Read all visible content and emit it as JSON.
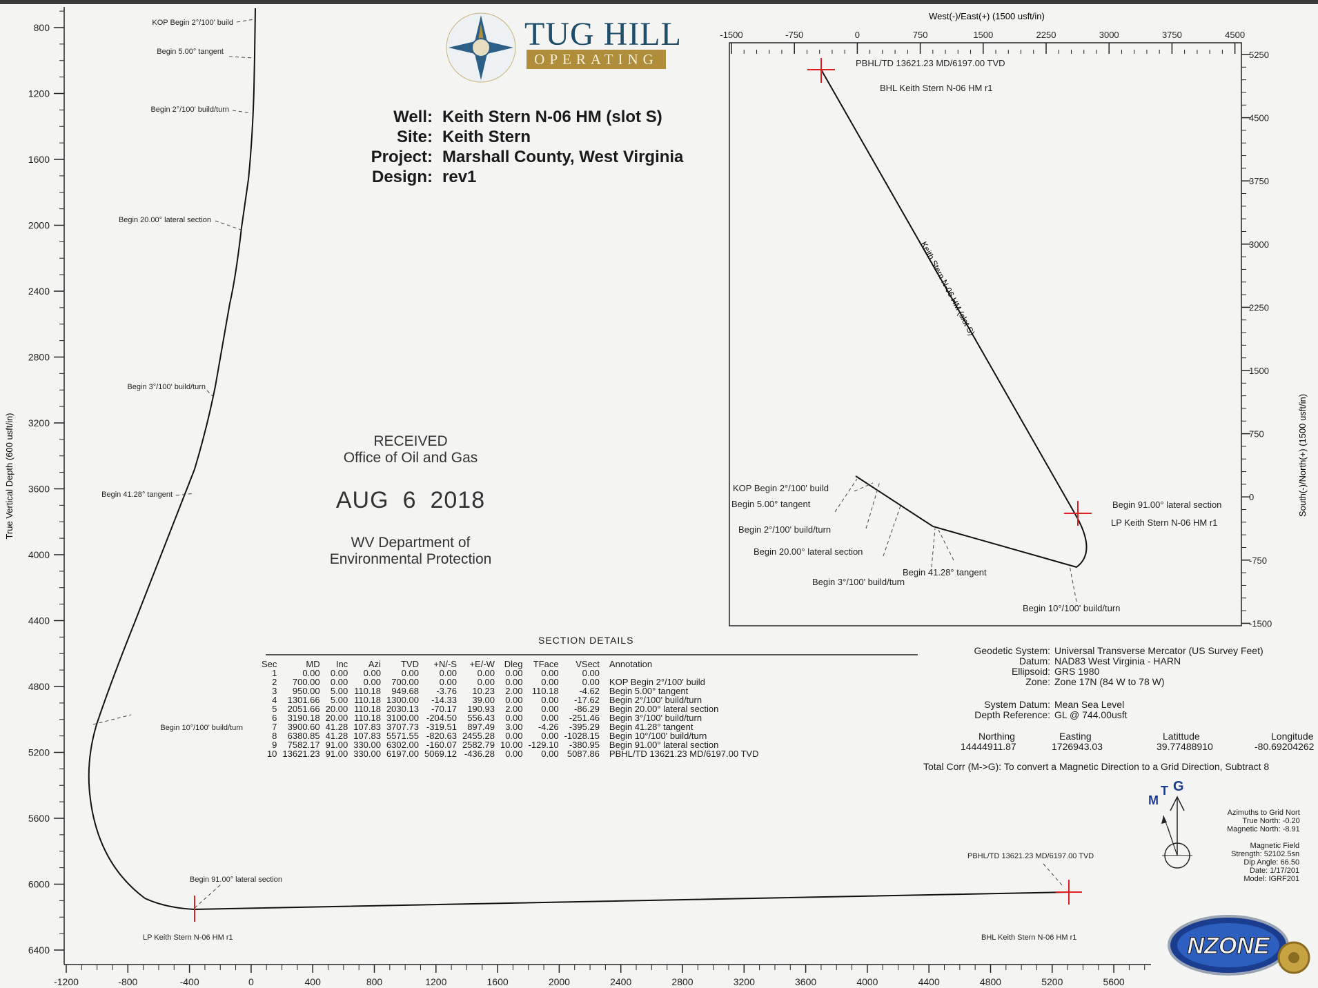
{
  "header": {
    "logo_title": "TUG HILL",
    "logo_subtitle": "OPERATING"
  },
  "well_info": [
    {
      "key": "Well:",
      "value": "Keith Stern N-06 HM (slot S)"
    },
    {
      "key": "Site:",
      "value": "Keith Stern"
    },
    {
      "key": "Project:",
      "value": "Marshall County, West Virginia"
    },
    {
      "key": "Design:",
      "value": "rev1"
    }
  ],
  "stamp": {
    "line1": "RECEIVED",
    "line2": "Office of Oil and Gas",
    "month": "AUG",
    "day": "6",
    "year": "2018",
    "line3": "WV Department of",
    "line4": "Environmental Protection"
  },
  "vertical_section": {
    "y_axis_label": "True Vertical Depth (600 usft/in)",
    "y_ticks": [
      "800",
      "1200",
      "1600",
      "2000",
      "2400",
      "2800",
      "3200",
      "3600",
      "4000",
      "4400",
      "4800",
      "5200",
      "5600",
      "6000",
      "6400"
    ],
    "x_ticks": [
      "-1200",
      "-800",
      "-400",
      "0",
      "400",
      "800",
      "1200",
      "1600",
      "2000",
      "2400",
      "2800",
      "3200",
      "3600",
      "4000",
      "4400",
      "4800",
      "5200",
      "5600"
    ],
    "labels": {
      "kop": "KOP Begin 2°/100' build",
      "tan5": "Begin 5.00° tangent",
      "buildturn2": "Begin 2°/100' build/turn",
      "lat20": "Begin 20.00° lateral section",
      "buildturn3": "Begin 3°/100' build/turn",
      "tan41": "Begin 41.28° tangent",
      "buildturn10": "Begin 10°/100' build/turn",
      "lat91": "Begin 91.00° lateral section",
      "lp": "LP Keith Stern N-06 HM r1",
      "pbhl": "PBHL/TD 13621.23 MD/6197.00 TVD",
      "bhl": "BHL Keith Stern N-06 HM r1"
    }
  },
  "plan_view": {
    "x_axis_label": "West(-)/East(+) (1500 usft/in)",
    "y_axis_label": "South(-)/North(+) (1500 usft/in)",
    "x_ticks": [
      "-1500",
      "-750",
      "0",
      "750",
      "1500",
      "2250",
      "3000",
      "3750",
      "4500"
    ],
    "y_ticks": [
      "5250",
      "4500",
      "3750",
      "3000",
      "2250",
      "1500",
      "750",
      "0",
      "-750",
      "-1500"
    ],
    "well_label": "Keith Stern N-06 HM (slot S)",
    "labels": {
      "pbhl": "PBHL/TD 13621.23 MD/6197.00 TVD",
      "bhl": "BHL Keith Stern N-06 HM r1",
      "kop": "KOP Begin 2°/100' build",
      "tan5": "Begin 5.00° tangent",
      "buildturn2": "Begin 2°/100' build/turn",
      "lat20": "Begin 20.00° lateral section",
      "tan41": "Begin 41.28° tangent",
      "buildturn3": "Begin 3°/100' build/turn",
      "lat91": "Begin 91.00° lateral section",
      "lp": "LP Keith Stern N-06 HM r1",
      "buildturn10": "Begin 10°/100' build/turn"
    }
  },
  "section_details": {
    "title": "SECTION DETAILS",
    "columns": [
      "Sec",
      "MD",
      "Inc",
      "Azi",
      "TVD",
      "+N/-S",
      "+E/-W",
      "Dleg",
      "TFace",
      "VSect",
      "Annotation"
    ],
    "rows": [
      [
        "1",
        "0.00",
        "0.00",
        "0.00",
        "0.00",
        "0.00",
        "0.00",
        "0.00",
        "0.00",
        "0.00",
        ""
      ],
      [
        "2",
        "700.00",
        "0.00",
        "0.00",
        "700.00",
        "0.00",
        "0.00",
        "0.00",
        "0.00",
        "0.00",
        "KOP Begin 2°/100' build"
      ],
      [
        "3",
        "950.00",
        "5.00",
        "110.18",
        "949.68",
        "-3.76",
        "10.23",
        "2.00",
        "110.18",
        "-4.62",
        "Begin 5.00° tangent"
      ],
      [
        "4",
        "1301.66",
        "5.00",
        "110.18",
        "1300.00",
        "-14.33",
        "39.00",
        "0.00",
        "0.00",
        "-17.62",
        "Begin 2°/100' build/turn"
      ],
      [
        "5",
        "2051.66",
        "20.00",
        "110.18",
        "2030.13",
        "-70.17",
        "190.93",
        "2.00",
        "0.00",
        "-86.29",
        "Begin 20.00° lateral section"
      ],
      [
        "6",
        "3190.18",
        "20.00",
        "110.18",
        "3100.00",
        "-204.50",
        "556.43",
        "0.00",
        "0.00",
        "-251.46",
        "Begin 3°/100' build/turn"
      ],
      [
        "7",
        "3900.60",
        "41.28",
        "107.83",
        "3707.73",
        "-319.51",
        "897.49",
        "3.00",
        "-4.26",
        "-395.29",
        "Begin 41.28° tangent"
      ],
      [
        "8",
        "6380.85",
        "41.28",
        "107.83",
        "5571.55",
        "-820.63",
        "2455.28",
        "0.00",
        "0.00",
        "-1028.15",
        "Begin 10°/100' build/turn"
      ],
      [
        "9",
        "7582.17",
        "91.00",
        "330.00",
        "6302.00",
        "-160.07",
        "2582.79",
        "10.00",
        "-129.10",
        "-380.95",
        "Begin 91.00° lateral section"
      ],
      [
        "10",
        "13621.23",
        "91.00",
        "330.00",
        "6197.00",
        "5069.12",
        "-436.28",
        "0.00",
        "0.00",
        "5087.86",
        "PBHL/TD 13621.23 MD/6197.00 TVD"
      ]
    ]
  },
  "geodetic": {
    "system_key": "Geodetic System:",
    "system_val": "Universal Transverse Mercator (US Survey Feet)",
    "datum_key": "Datum:",
    "datum_val": "NAD83 West Virginia - HARN",
    "ellipsoid_key": "Ellipsoid:",
    "ellipsoid_val": "GRS 1980",
    "zone_key": "Zone:",
    "zone_val": "Zone 17N (84 W to 78 W)",
    "sysdatum_key": "System Datum:",
    "sysdatum_val": "Mean Sea Level",
    "depthref_key": "Depth Reference:",
    "depthref_val": "GL @ 744.00usft",
    "northing_h": "Northing",
    "easting_h": "Easting",
    "lat_h": "Latittude",
    "lon_h": "Longitude",
    "northing": "14444911.87",
    "easting": "1726943.03",
    "lat": "39.77488910",
    "lon": "-80.69204262",
    "total_corr": "Total Corr (M->G):  To convert a Magnetic Direction to a Grid Direction, Subtract 8"
  },
  "north_arrow": {
    "m": "M",
    "t": "T",
    "g": "G",
    "notes1": "Azimuths to Grid Nort",
    "notes2": "True North: -0.20",
    "notes3": "Magnetic North: -8.91",
    "mag1": "Magnetic Field",
    "mag2": "Strength: 52102.5sn",
    "mag3": "Dip Angle: 66.50",
    "mag4": "Date: 1/17/201",
    "mag5": "Model: IGRF201"
  },
  "badge": {
    "text": "NZONE"
  }
}
